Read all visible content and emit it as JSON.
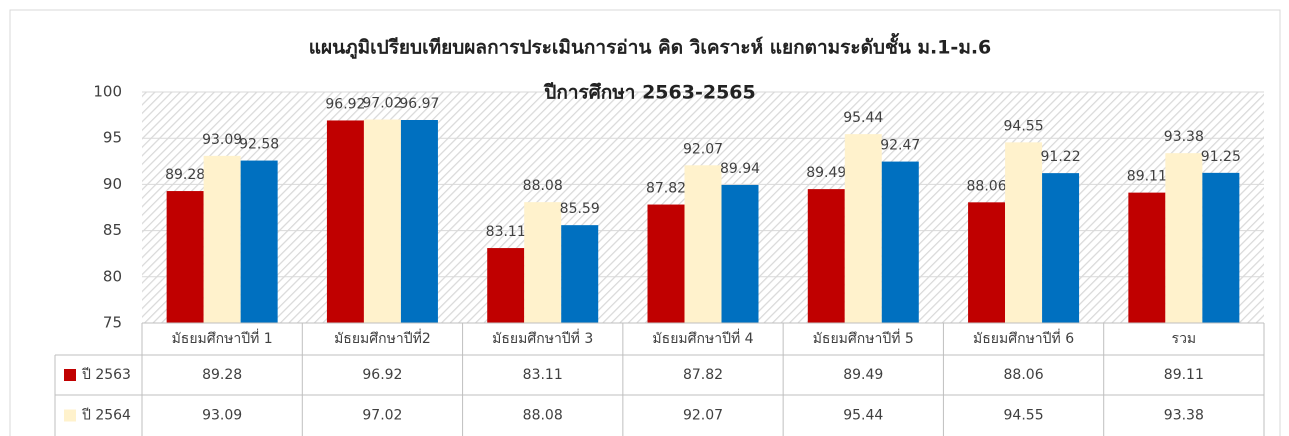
{
  "chart_data": {
    "type": "bar",
    "title": "แผนภูมิเปรียบเทียบผลการประเมินการอ่าน คิด วิเคราะห์ แยกตามระดับชั้น ม.1-ม.6",
    "subtitle": "ปีการศึกษา 2563-2565",
    "categories": [
      "มัธยมศึกษาปีที่ 1",
      "มัธยมศึกษาปีที่2",
      "มัธยมศึกษาปีที่ 3",
      "มัธยมศึกษาปีที่ 4",
      "มัธยมศึกษาปีที่ 5",
      "มัธยมศึกษาปีที่ 6",
      "รวม"
    ],
    "series": [
      {
        "name": "ปี 2563",
        "color": "#c00000",
        "values": [
          89.28,
          96.92,
          83.11,
          87.82,
          89.49,
          88.06,
          89.11
        ]
      },
      {
        "name": "ปี 2564",
        "color": "#fff2cc",
        "values": [
          93.09,
          97.02,
          88.08,
          92.07,
          95.44,
          94.55,
          93.38
        ]
      },
      {
        "color": "#0070c0",
        "values": [
          92.58,
          96.97,
          85.59,
          89.94,
          92.47,
          91.22,
          91.25
        ]
      }
    ],
    "ylim": [
      75,
      100
    ],
    "yticks": [
      75,
      80,
      85,
      90,
      95,
      100
    ],
    "grid": true
  }
}
